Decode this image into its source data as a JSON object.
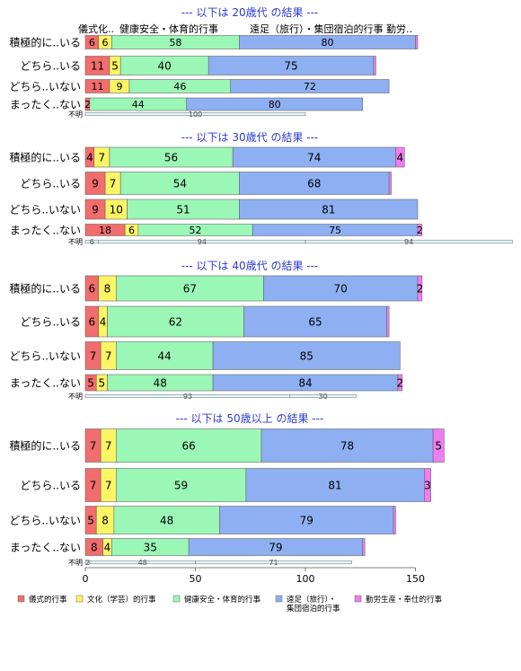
{
  "colors": {
    "ceremony": "#f26d6d",
    "culture": "#fbf564",
    "health": "#9bf7b6",
    "travel": "#8eb0f2",
    "labor": "#ee7ef0",
    "title": "#2b3bd1",
    "unknown_fill": "#e2f8fc"
  },
  "legend": [
    {
      "key": "ceremony",
      "label": "儀式的行事"
    },
    {
      "key": "culture",
      "label": "文化（学芸）的行事"
    },
    {
      "key": "health",
      "label": "健康安全・体育的行事"
    },
    {
      "key": "travel",
      "label": "遠足（旅行）・\n集団宿泊的行事"
    },
    {
      "key": "labor",
      "label": "勤労生産・奉仕的行事"
    }
  ],
  "header_labels": [
    "儀式化..",
    "健康安全・体育的行事",
    "遠足（旅行）・集団宿泊的行事 勤労.."
  ],
  "chart_data": {
    "type": "bar",
    "orientation": "horizontal",
    "stacked": true,
    "xlim": [
      0,
      150
    ],
    "x_ticks": [
      0,
      50,
      100,
      150
    ],
    "series_keys": [
      "ceremony",
      "culture",
      "health",
      "travel",
      "labor"
    ],
    "panels": [
      {
        "title": "--- 以下は 20歳代 の結果 ---",
        "rows": [
          {
            "label": "積極的に..いる",
            "values": [
              6,
              6,
              58,
              80,
              1
            ]
          },
          {
            "label": "どちら..いる",
            "values": [
              11,
              5,
              40,
              75,
              1
            ]
          },
          {
            "label": "どちら..いない",
            "values": [
              11,
              9,
              46,
              72,
              0
            ]
          },
          {
            "label": "まったく..ない",
            "values": [
              2,
              0,
              44,
              80,
              0
            ]
          }
        ],
        "unknown": {
          "label": "不明",
          "values": [
            100
          ]
        }
      },
      {
        "title": "--- 以下は 30歳代 の結果 ---",
        "rows": [
          {
            "label": "積極的に..いる",
            "values": [
              4,
              7,
              56,
              74,
              4
            ]
          },
          {
            "label": "どちら..いる",
            "values": [
              9,
              7,
              54,
              68,
              1
            ]
          },
          {
            "label": "どちら..いない",
            "values": [
              9,
              10,
              51,
              81,
              0
            ]
          },
          {
            "label": "まったく..ない",
            "values": [
              18,
              6,
              52,
              75,
              2
            ]
          }
        ],
        "unknown": {
          "label": "不明",
          "values": [
            6,
            94,
            94
          ]
        }
      },
      {
        "title": "--- 以下は 40歳代 の結果 ---",
        "rows": [
          {
            "label": "積極的に..いる",
            "values": [
              6,
              8,
              67,
              70,
              2
            ]
          },
          {
            "label": "どちら..いる",
            "values": [
              6,
              4,
              62,
              65,
              1
            ]
          },
          {
            "label": "どちら..いない",
            "values": [
              7,
              7,
              44,
              85,
              0
            ]
          },
          {
            "label": "まったく..ない",
            "values": [
              5,
              5,
              48,
              84,
              2
            ]
          }
        ],
        "unknown": {
          "label": "不明",
          "values": [
            93,
            30
          ]
        }
      },
      {
        "title": "--- 以下は 50歳以上 の結果 ---",
        "rows": [
          {
            "label": "積極的に..いる",
            "values": [
              7,
              7,
              66,
              78,
              5
            ]
          },
          {
            "label": "どちら..いる",
            "values": [
              7,
              7,
              59,
              81,
              3
            ]
          },
          {
            "label": "どちら..いない",
            "values": [
              5,
              8,
              48,
              79,
              1
            ]
          },
          {
            "label": "まったく..ない",
            "values": [
              8,
              4,
              35,
              79,
              1
            ]
          }
        ],
        "unknown": {
          "label": "不明",
          "values": [
            2,
            48,
            71
          ]
        }
      }
    ]
  }
}
